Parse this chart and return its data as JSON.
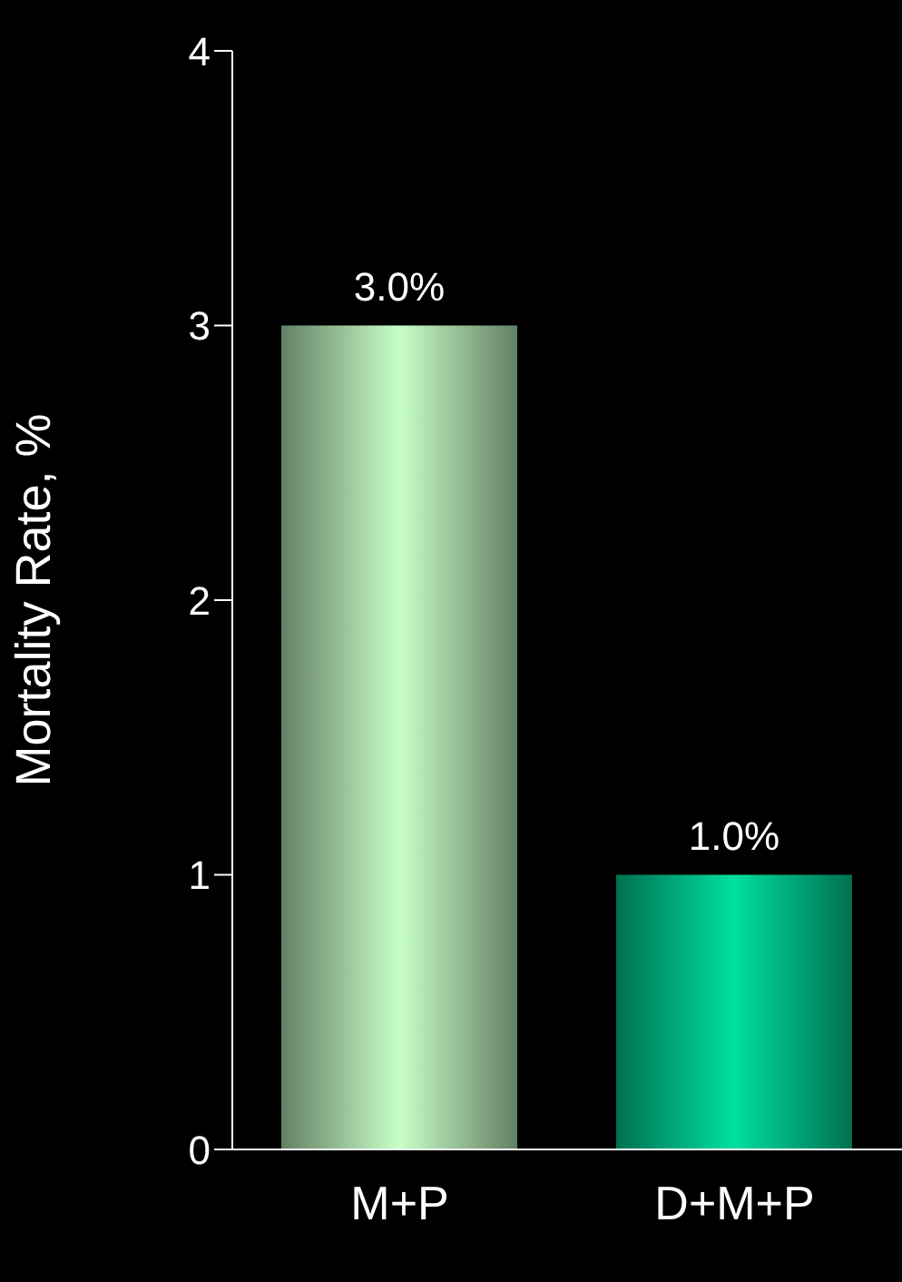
{
  "chart_data": {
    "type": "bar",
    "ylabel": "Mortality Rate, %",
    "categories": [
      "M+P",
      "D+M+P"
    ],
    "values": [
      3,
      1
    ],
    "colors": [
      "#c8ffc8",
      "#00e0a0"
    ],
    "value_labels": [
      "3.0%",
      "1.0%"
    ],
    "ylim": [
      0,
      4
    ],
    "yticks": [
      0,
      1,
      2,
      3,
      4
    ],
    "grid": false
  }
}
